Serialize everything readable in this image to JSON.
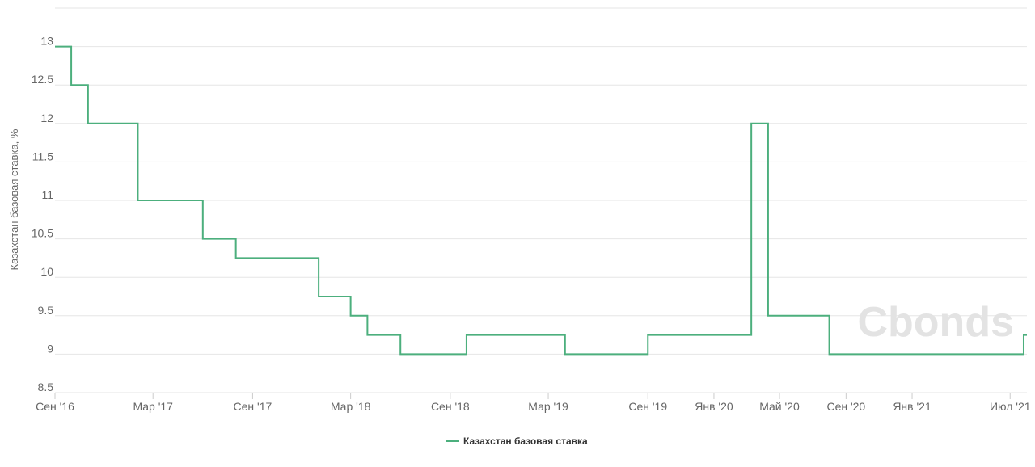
{
  "chart_data": {
    "type": "line",
    "step": true,
    "title": "",
    "xlabel": "",
    "ylabel": "Казахстан базовая ставка, %",
    "ylim": [
      8.5,
      13.5
    ],
    "yticks": [
      8.5,
      9,
      9.5,
      10,
      10.5,
      11,
      11.5,
      12,
      12.5,
      13
    ],
    "ytick_labels": [
      "8.5",
      "9",
      "9.5",
      "10",
      "10.5",
      "11",
      "11.5",
      "12",
      "12.5",
      "13"
    ],
    "xlim": [
      "2016-09-01",
      "2021-08-01"
    ],
    "xticks": [
      {
        "date": "2016-09-01",
        "label": "Сен '16"
      },
      {
        "date": "2017-03-01",
        "label": "Мар '17"
      },
      {
        "date": "2017-09-01",
        "label": "Сен '17"
      },
      {
        "date": "2018-03-01",
        "label": "Мар '18"
      },
      {
        "date": "2018-09-01",
        "label": "Сен '18"
      },
      {
        "date": "2019-03-01",
        "label": "Мар '19"
      },
      {
        "date": "2019-09-01",
        "label": "Сен '19"
      },
      {
        "date": "2020-01-01",
        "label": "Янв '20"
      },
      {
        "date": "2020-05-01",
        "label": "Май '20"
      },
      {
        "date": "2020-09-01",
        "label": "Сен '20"
      },
      {
        "date": "2021-01-01",
        "label": "Янв '21"
      },
      {
        "date": "2021-07-01",
        "label": "Июл '21"
      }
    ],
    "grid": true,
    "legend": "bottom-center",
    "series": [
      {
        "name": "Казахстан базовая ставка",
        "color": "#4caf7d",
        "x": [
          "2016-09-01",
          "2016-10-01",
          "2016-11-01",
          "2017-02-01",
          "2017-06-01",
          "2017-08-01",
          "2018-01-01",
          "2018-03-01",
          "2018-04-01",
          "2018-06-01",
          "2018-10-01",
          "2019-04-01",
          "2019-09-01",
          "2020-03-10",
          "2020-04-10",
          "2020-08-01",
          "2021-07-26"
        ],
        "y": [
          13,
          12.5,
          12,
          11,
          10.5,
          10.25,
          9.75,
          9.5,
          9.25,
          9,
          9.25,
          9,
          9.25,
          12,
          9.5,
          9,
          9.25
        ],
        "end": "2021-08-01"
      }
    ]
  },
  "watermark": "Cbonds"
}
